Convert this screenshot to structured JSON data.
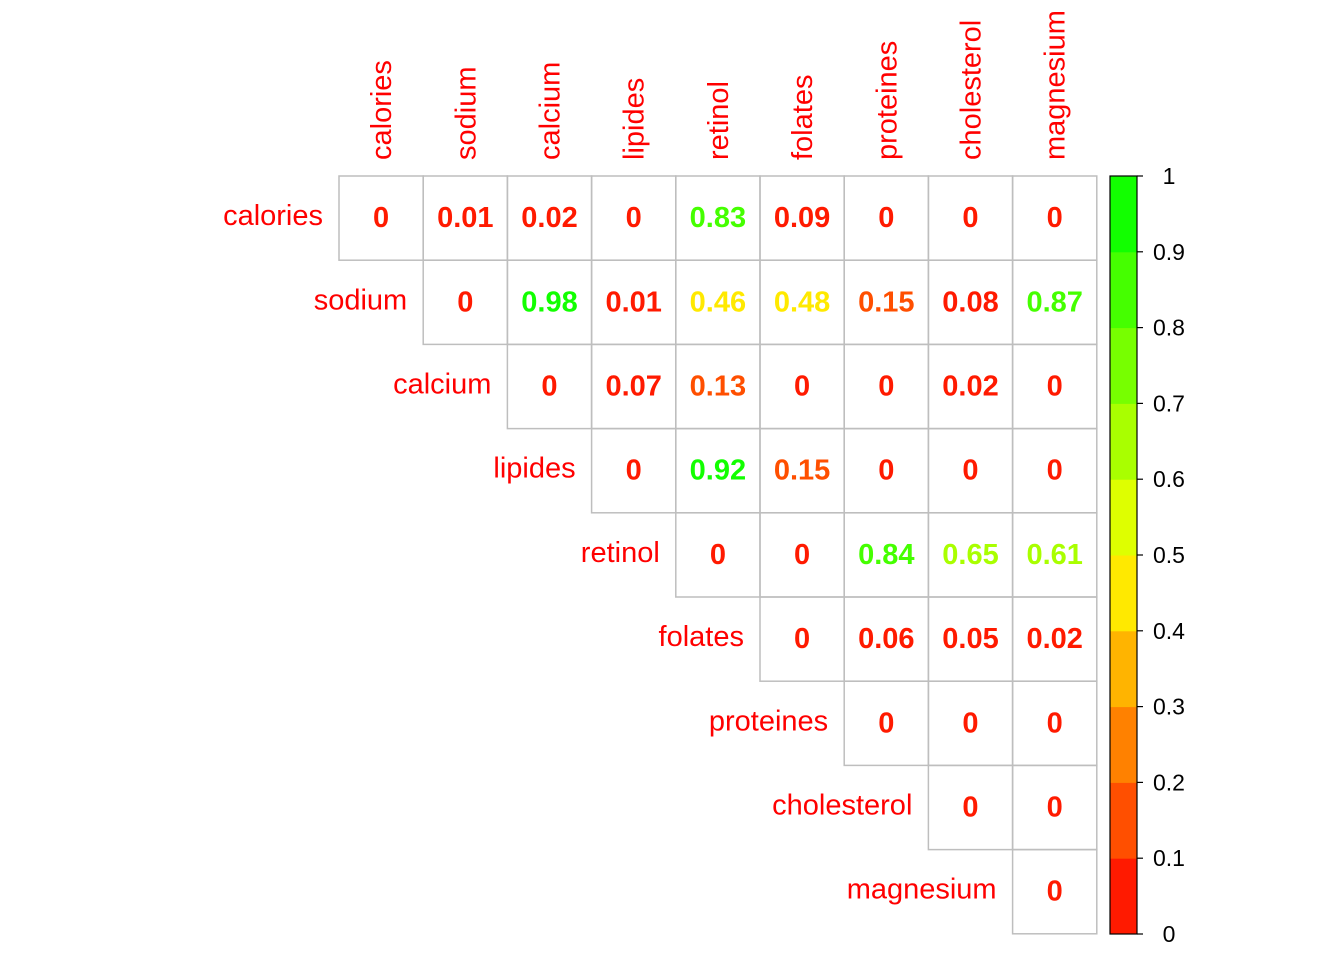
{
  "chart_data": {
    "type": "heatmap",
    "layout": "upper-triangular",
    "variables": [
      "calories",
      "sodium",
      "calcium",
      "lipides",
      "retinol",
      "folates",
      "proteines",
      "cholesterol",
      "magnesium"
    ],
    "matrix": [
      [
        "0",
        "0.01",
        "0.02",
        "0",
        "0.83",
        "0.09",
        "0",
        "0",
        "0"
      ],
      [
        null,
        "0",
        "0.98",
        "0.01",
        "0.46",
        "0.48",
        "0.15",
        "0.08",
        "0.87"
      ],
      [
        null,
        null,
        "0",
        "0.07",
        "0.13",
        "0",
        "0",
        "0.02",
        "0"
      ],
      [
        null,
        null,
        null,
        "0",
        "0.92",
        "0.15",
        "0",
        "0",
        "0"
      ],
      [
        null,
        null,
        null,
        null,
        "0",
        "0",
        "0.84",
        "0.65",
        "0.61"
      ],
      [
        null,
        null,
        null,
        null,
        null,
        "0",
        "0.06",
        "0.05",
        "0.02"
      ],
      [
        null,
        null,
        null,
        null,
        null,
        null,
        "0",
        "0",
        "0"
      ],
      [
        null,
        null,
        null,
        null,
        null,
        null,
        null,
        "0",
        "0"
      ],
      [
        null,
        null,
        null,
        null,
        null,
        null,
        null,
        null,
        "0"
      ]
    ],
    "colorbar": {
      "range": [
        0,
        1
      ],
      "ticks": [
        "0",
        "0.1",
        "0.2",
        "0.3",
        "0.4",
        "0.5",
        "0.6",
        "0.7",
        "0.8",
        "0.9",
        "1"
      ],
      "colors": [
        "#FF1A00",
        "#FF4F00",
        "#FF8100",
        "#FFB400",
        "#FFE900",
        "#DEFF00",
        "#A9FF00",
        "#77FF00",
        "#45FF00",
        "#12FF00"
      ]
    },
    "label_color": "#FF0000",
    "grid_color": "#BEBEBE"
  }
}
